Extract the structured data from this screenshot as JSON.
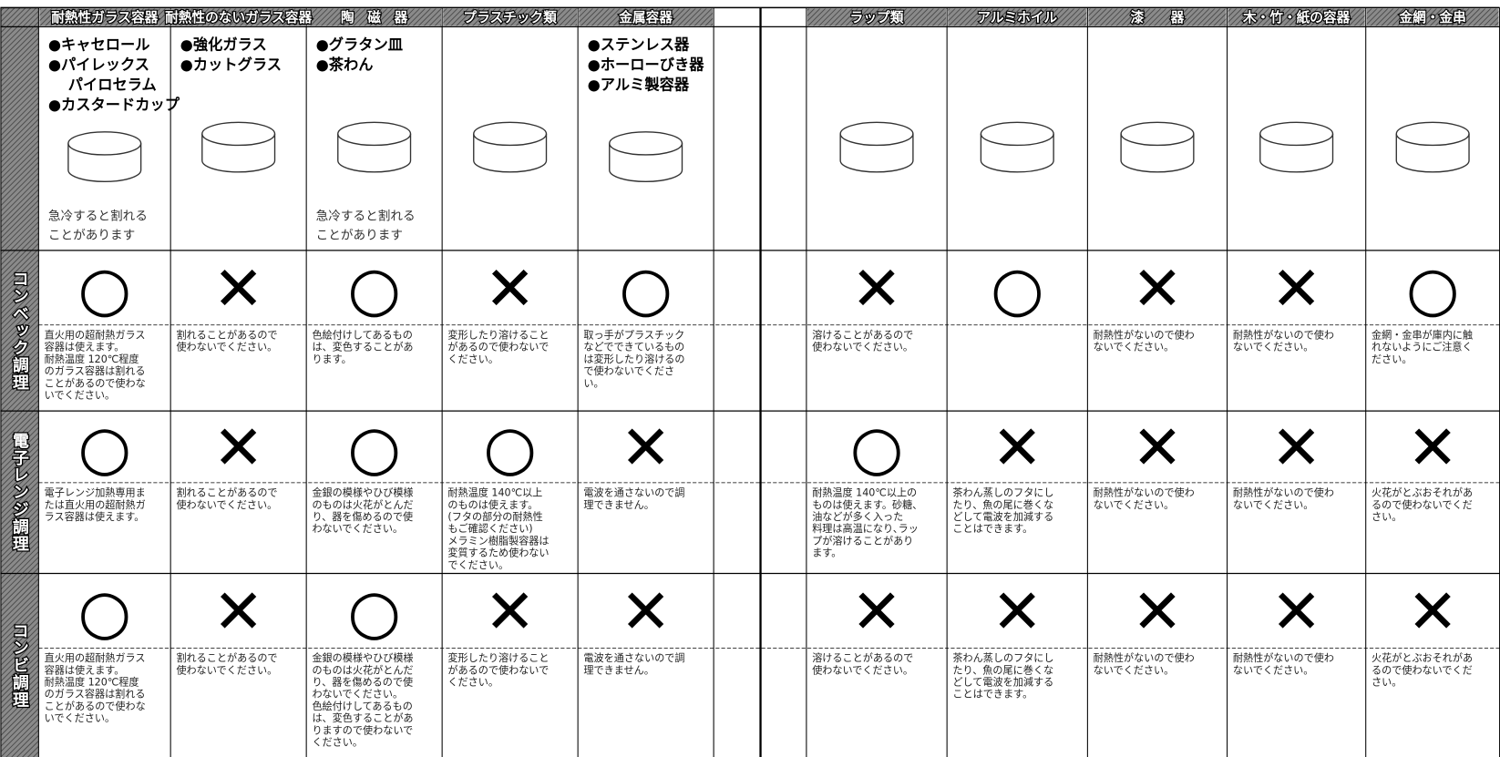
{
  "headers": [
    "耐熱性ガラス容器",
    "耐熱性のないガラス容器",
    "陶　磁　器",
    "プラスチック類",
    "金属容器",
    "ラップ類",
    "アルミホイル",
    "漆　　器",
    "木・竹・紙の容器",
    "金網・金串"
  ],
  "items": [
    {
      "bullets": [
        "●キャセロール",
        "●パイレックス",
        "　 パイロセラム",
        "●カスタードカップ"
      ],
      "note": [
        "急冷すると割れる",
        "ことがあります"
      ]
    },
    {
      "bullets": [
        "●強化ガラス",
        "●カットグラス"
      ],
      "note": []
    },
    {
      "bullets": [
        "●グラタン皿",
        "●茶わん"
      ],
      "note": [
        "急冷すると割れる",
        "ことがあります"
      ]
    },
    {
      "bullets": [],
      "note": []
    },
    {
      "bullets": [
        "●ステンレス器",
        "●ホーローびき器",
        "●アルミ製容器"
      ],
      "note": []
    },
    {
      "bullets": [],
      "note": []
    },
    {
      "bullets": [],
      "note": []
    },
    {
      "bullets": [],
      "note": []
    },
    {
      "bullets": [],
      "note": []
    },
    {
      "bullets": [],
      "note": []
    }
  ],
  "rows": [
    {
      "label": "コンベック調理",
      "cells": [
        {
          "symbol": "○",
          "note": [
            "直火用の超耐熱ガラス",
            "容器は使えます。",
            "耐熱温度 120℃程度",
            "のガラス容器は割れる",
            "ことがあるので使わな",
            "いでください。"
          ]
        },
        {
          "symbol": "✕",
          "note": [
            "割れることがあるので",
            "使わないでください。"
          ]
        },
        {
          "symbol": "○",
          "note": [
            "色絵付けしてあるもの",
            "は、変色することがあ",
            "ります。"
          ]
        },
        {
          "symbol": "✕",
          "note": [
            "変形したり溶けること",
            "があるので使わないで",
            "ください。"
          ]
        },
        {
          "symbol": "○",
          "note": [
            "取っ手がプラスチック",
            "などでできているもの",
            "は変形したり溶けるの",
            "で使わないでくださ",
            "い。"
          ]
        },
        {
          "symbol": "✕",
          "note": [
            "溶けることがあるので",
            "使わないでください。"
          ]
        },
        {
          "symbol": "○",
          "note": []
        },
        {
          "symbol": "✕",
          "note": [
            "耐熱性がないので使わ",
            "ないでください。"
          ]
        },
        {
          "symbol": "✕",
          "note": [
            "耐熱性がないので使わ",
            "ないでください。"
          ]
        },
        {
          "symbol": "○",
          "note": [
            "金網・金串が庫内に触",
            "れないようにご注意く",
            "ださい。"
          ]
        }
      ]
    },
    {
      "label": "電子レンジ調理",
      "cells": [
        {
          "symbol": "○",
          "note": [
            "電子レンジ加熱専用ま",
            "たは直火用の超耐熱ガ",
            "ラス容器は使えます。"
          ]
        },
        {
          "symbol": "✕",
          "note": [
            "割れることがあるので",
            "使わないでください。"
          ]
        },
        {
          "symbol": "○",
          "note": [
            "金銀の模様やひび模様",
            "のものは火花がとんだ",
            "り、器を傷めるので使",
            "わないでください。"
          ]
        },
        {
          "symbol": "○",
          "note": [
            "耐熱温度 140℃以上",
            "のものは使えます。",
            "(フタの部分の耐熱性",
            "もご確認ください)",
            "メラミン樹脂製容器は",
            "変質するため使わない",
            "でください。"
          ]
        },
        {
          "symbol": "✕",
          "note": [
            "電波を通さないので調",
            "理できません。"
          ]
        },
        {
          "symbol": "○",
          "note": [
            "耐熱温度 140℃以上の",
            "ものは使えます。砂糖、",
            "油などが多く入った",
            "料理は高温になり､ラッ",
            "プが溶けることがあり",
            "ます。"
          ]
        },
        {
          "symbol": "✕",
          "note": [
            "茶わん蒸しのフタにし",
            "たり、魚の尾に巻くな",
            "どして電波を加減する",
            "ことはできます。"
          ]
        },
        {
          "symbol": "✕",
          "note": [
            "耐熱性がないので使わ",
            "ないでください。"
          ]
        },
        {
          "symbol": "✕",
          "note": [
            "耐熱性がないので使わ",
            "ないでください。"
          ]
        },
        {
          "symbol": "✕",
          "note": [
            "火花がとぶおそれがあ",
            "るので使わないでくだ",
            "さい。"
          ]
        }
      ]
    },
    {
      "label": "コンビ調理",
      "cells": [
        {
          "symbol": "○",
          "note": [
            "直火用の超耐熱ガラス",
            "容器は使えます。",
            "耐熱温度 120℃程度",
            "のガラス容器は割れる",
            "ことがあるので使わな",
            "いでください。"
          ]
        },
        {
          "symbol": "✕",
          "note": [
            "割れることがあるので",
            "使わないでください。"
          ]
        },
        {
          "symbol": "○",
          "note": [
            "金銀の模様やひび模様",
            "のものは火花がとんだ",
            "り、器を傷めるので使",
            "わないでください。",
            "色絵付けしてあるもの",
            "は、変色することがあ",
            "りますので使わないで",
            "ください。"
          ]
        },
        {
          "symbol": "✕",
          "note": [
            "変形したり溶けること",
            "があるので使わないで",
            "ください。"
          ]
        },
        {
          "symbol": "✕",
          "note": [
            "電波を通さないので調",
            "理できません。"
          ]
        },
        {
          "symbol": "✕",
          "note": [
            "溶けることがあるので",
            "使わないでください。"
          ]
        },
        {
          "symbol": "✕",
          "note": [
            "茶わん蒸しのフタにし",
            "たり、魚の尾に巻くな",
            "どして電波を加減する",
            "ことはできます。"
          ]
        },
        {
          "symbol": "✕",
          "note": [
            "耐熱性がないので使わ",
            "ないでください。"
          ]
        },
        {
          "symbol": "✕",
          "note": [
            "耐熱性がないので使わ",
            "ないでください。"
          ]
        },
        {
          "symbol": "✕",
          "note": [
            "火花がとぶおそれがあ",
            "るので使わないでくだ",
            "さい。"
          ]
        }
      ]
    }
  ]
}
